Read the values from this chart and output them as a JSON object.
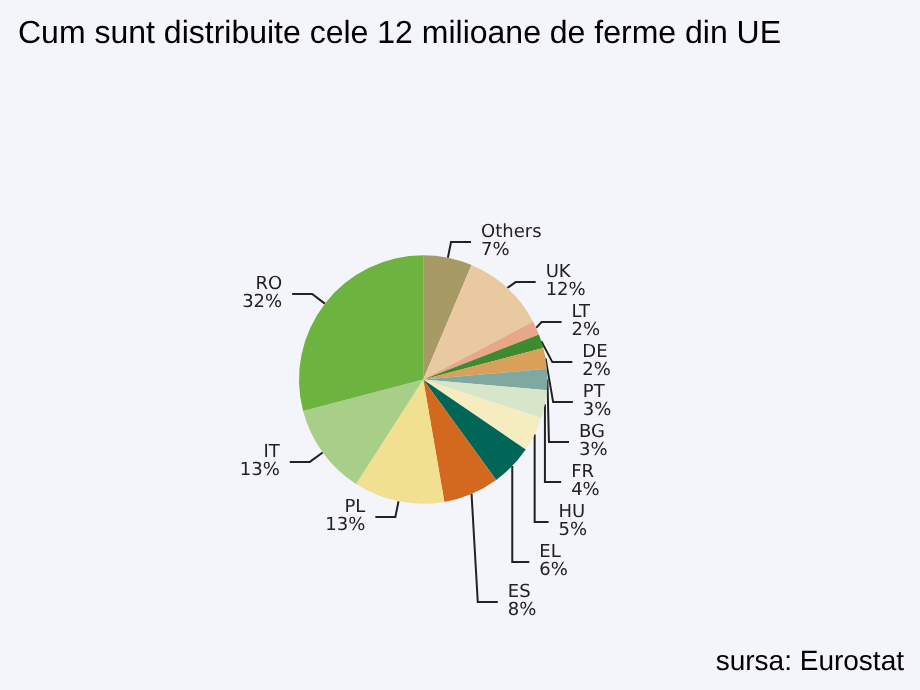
{
  "chart_data": {
    "type": "pie",
    "title": "Cum sunt distribuite cele 12 milioane de ferme din UE",
    "categories": [
      "Others",
      "UK",
      "LT",
      "DE",
      "PT",
      "BG",
      "FR",
      "HU",
      "EL",
      "ES",
      "PL",
      "IT",
      "RO"
    ],
    "values": [
      7,
      12,
      2,
      2,
      3,
      3,
      4,
      5,
      6,
      8,
      13,
      13,
      32
    ],
    "value_labels": [
      "7%",
      "12%",
      "2%",
      "2%",
      "3%",
      "3%",
      "4%",
      "5%",
      "6%",
      "8%",
      "13%",
      "13%",
      "32%"
    ],
    "colors": [
      "#a89a64",
      "#e8c9a0",
      "#e8a888",
      "#3f8a2e",
      "#d9a05a",
      "#7fa8a0",
      "#d7e6c8",
      "#f5ecc0",
      "#006658",
      "#d2691e",
      "#f0e090",
      "#a8cf88",
      "#6db33f"
    ],
    "annotations": [
      "sursa: Eurostat"
    ],
    "legend": false
  }
}
